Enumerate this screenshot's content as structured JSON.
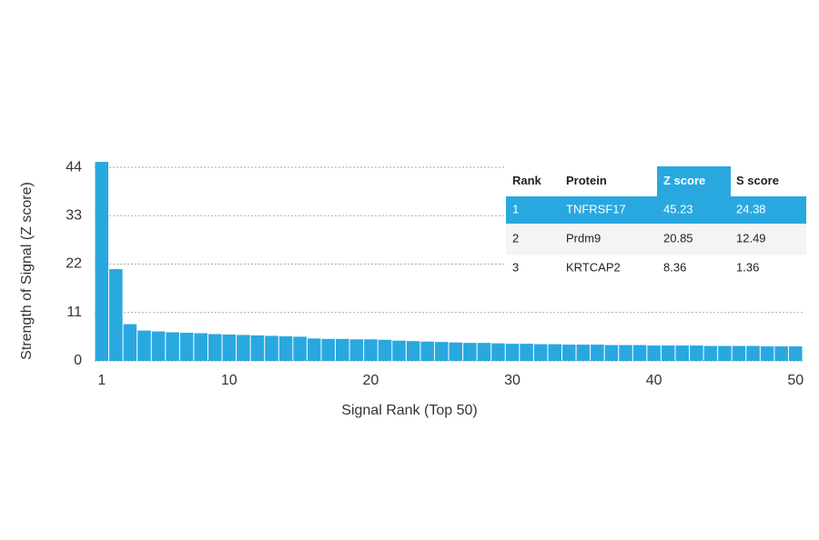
{
  "chart_data": {
    "type": "bar",
    "x": [
      1,
      2,
      3,
      4,
      5,
      6,
      7,
      8,
      9,
      10,
      11,
      12,
      13,
      14,
      15,
      16,
      17,
      18,
      19,
      20,
      21,
      22,
      23,
      24,
      25,
      26,
      27,
      28,
      29,
      30,
      31,
      32,
      33,
      34,
      35,
      36,
      37,
      38,
      39,
      40,
      41,
      42,
      43,
      44,
      45,
      46,
      47,
      48,
      49,
      50
    ],
    "values": [
      45.23,
      20.85,
      8.36,
      6.9,
      6.7,
      6.5,
      6.4,
      6.3,
      6.1,
      6.0,
      5.9,
      5.8,
      5.7,
      5.6,
      5.5,
      5.1,
      5.0,
      5.0,
      4.9,
      4.9,
      4.8,
      4.6,
      4.5,
      4.4,
      4.3,
      4.2,
      4.1,
      4.1,
      4.0,
      3.9,
      3.9,
      3.8,
      3.8,
      3.7,
      3.7,
      3.7,
      3.6,
      3.6,
      3.6,
      3.5,
      3.5,
      3.5,
      3.5,
      3.4,
      3.4,
      3.4,
      3.4,
      3.3,
      3.3,
      3.3
    ],
    "color": "#29a8e0",
    "xlim": [
      0.5,
      50.5
    ],
    "xticks": [
      1,
      10,
      20,
      30,
      40,
      50
    ],
    "ylim": [
      0,
      46
    ],
    "yticks": [
      0,
      11,
      22,
      33,
      44
    ],
    "grid": true,
    "x_label": "Signal Rank (Top 50)",
    "y_label": "Strength of Signal (Z score)",
    "table": {
      "columns": [
        "Rank",
        "Protein",
        "Z score",
        "S score"
      ],
      "rows": [
        [
          1,
          "TNFRSF17",
          45.23,
          24.38
        ],
        [
          2,
          "Prdm9",
          20.85,
          12.49
        ],
        [
          3,
          "KRTCAP2",
          8.36,
          1.36
        ]
      ],
      "highlight_row": 0,
      "highlight_column": 2
    }
  }
}
